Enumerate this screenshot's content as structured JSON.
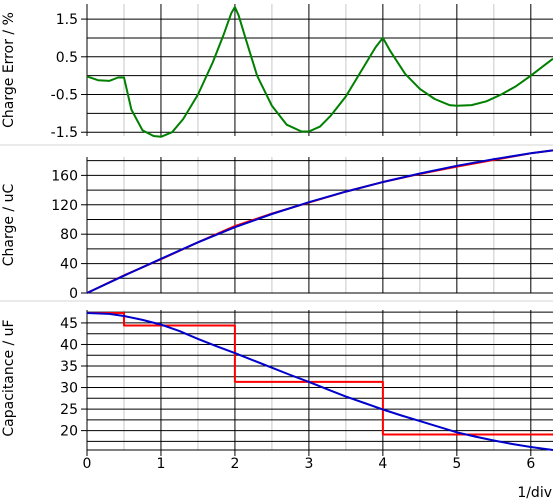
{
  "chart_data": [
    {
      "type": "line",
      "ylabel": "Charge Error / %",
      "xlim": [
        0,
        6.3
      ],
      "ylim": [
        -1.6,
        1.9
      ],
      "yticks": [
        1.5,
        0.5,
        -0.5,
        -1.5
      ],
      "ytick_labels": [
        "1.5",
        "0.5",
        "-0.5",
        "-1.5"
      ],
      "grid": true,
      "series": [
        {
          "color": "#008000",
          "x": [
            0,
            0.15,
            0.3,
            0.42,
            0.5,
            0.6,
            0.75,
            0.9,
            1.0,
            1.15,
            1.3,
            1.5,
            1.7,
            1.85,
            1.95,
            2.0,
            2.05,
            2.15,
            2.3,
            2.5,
            2.7,
            2.9,
            3.0,
            3.15,
            3.3,
            3.5,
            3.7,
            3.9,
            4.0,
            4.1,
            4.3,
            4.5,
            4.7,
            4.9,
            5.0,
            5.2,
            5.4,
            5.6,
            5.8,
            6.0,
            6.2,
            6.3
          ],
          "y": [
            -0.02,
            -0.12,
            -0.14,
            -0.05,
            -0.05,
            -0.9,
            -1.45,
            -1.6,
            -1.62,
            -1.5,
            -1.15,
            -0.5,
            0.35,
            1.1,
            1.65,
            1.82,
            1.6,
            0.95,
            0.0,
            -0.8,
            -1.3,
            -1.48,
            -1.48,
            -1.35,
            -1.05,
            -0.55,
            0.1,
            0.75,
            1.0,
            0.65,
            0.05,
            -0.35,
            -0.62,
            -0.78,
            -0.8,
            -0.78,
            -0.68,
            -0.5,
            -0.28,
            0.0,
            0.3,
            0.45
          ]
        }
      ]
    },
    {
      "type": "line",
      "ylabel": "Charge / uC",
      "xlim": [
        0,
        6.3
      ],
      "ylim": [
        0,
        185
      ],
      "yticks": [
        0,
        40,
        80,
        120,
        160
      ],
      "ytick_labels": [
        "0",
        "40",
        "80",
        "120",
        "160"
      ],
      "grid": true,
      "series": [
        {
          "color": "#ff0000",
          "x": [
            0,
            0.5,
            1,
            1.5,
            2,
            2.5,
            3,
            3.5,
            4,
            4.5,
            5,
            5.5,
            6,
            6.3
          ],
          "y": [
            0,
            24,
            46,
            69,
            91,
            108,
            123,
            138,
            151,
            162,
            172,
            181,
            190,
            194
          ]
        },
        {
          "color": "#0000cc",
          "x": [
            0,
            0.5,
            1,
            1.5,
            2,
            2.5,
            3,
            3.5,
            4,
            4.5,
            5,
            5.5,
            6,
            6.3
          ],
          "y": [
            0,
            23.5,
            46.5,
            69,
            89.5,
            107.5,
            123.5,
            138,
            151,
            162.5,
            173,
            182,
            190,
            194
          ]
        }
      ]
    },
    {
      "type": "line",
      "xlabel": "1/div",
      "ylabel": "Capacitance / uF",
      "xlim": [
        0,
        6.3
      ],
      "ylim": [
        15.5,
        48
      ],
      "xticks": [
        0,
        1,
        2,
        3,
        4,
        5,
        6
      ],
      "xtick_labels": [
        "0",
        "1",
        "2",
        "3",
        "4",
        "5",
        "6"
      ],
      "yticks": [
        20,
        25,
        30,
        35,
        40,
        45
      ],
      "ytick_labels": [
        "20",
        "25",
        "30",
        "35",
        "40",
        "45"
      ],
      "grid": true,
      "series": [
        {
          "color": "#ff0000",
          "x": [
            0,
            0.5,
            0.5,
            2,
            2,
            4,
            4,
            6.3
          ],
          "y": [
            47.3,
            47.3,
            44.4,
            44.4,
            31.3,
            31.3,
            19.1,
            19.1
          ]
        },
        {
          "color": "#0000cc",
          "x": [
            0,
            0.3,
            0.5,
            0.75,
            1,
            1.25,
            1.5,
            1.75,
            2,
            2.25,
            2.5,
            2.75,
            3,
            3.25,
            3.5,
            3.75,
            4,
            4.25,
            4.5,
            4.75,
            5,
            5.25,
            5.5,
            5.75,
            6,
            6.3
          ],
          "y": [
            47.3,
            47.1,
            46.6,
            45.7,
            44.6,
            43.1,
            41.3,
            39.6,
            38.0,
            36.3,
            34.6,
            32.9,
            31.3,
            29.6,
            27.9,
            26.4,
            24.9,
            23.5,
            22.2,
            20.9,
            19.6,
            18.6,
            17.7,
            16.9,
            16.2,
            15.5
          ]
        }
      ]
    }
  ]
}
